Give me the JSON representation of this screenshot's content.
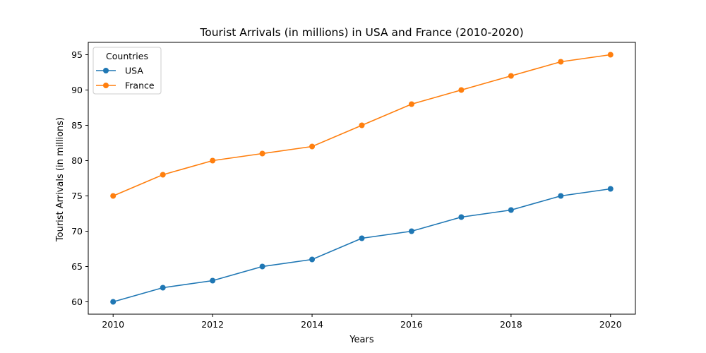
{
  "chart_data": {
    "type": "line",
    "title": "Tourist Arrivals (in millions) in USA and France (2010-2020)",
    "xlabel": "Years",
    "ylabel": "Tourist Arrivals (in millions)",
    "x": [
      2010,
      2011,
      2012,
      2013,
      2014,
      2015,
      2016,
      2017,
      2018,
      2019,
      2020
    ],
    "xlim": [
      2009.5,
      2020.5
    ],
    "ylim": [
      58.25,
      96.75
    ],
    "x_ticks": [
      "2010",
      "2012",
      "2014",
      "2016",
      "2018",
      "2020"
    ],
    "y_ticks": [
      "60",
      "65",
      "70",
      "75",
      "80",
      "85",
      "90",
      "95"
    ],
    "grid": false,
    "legend": {
      "title": "Countries",
      "placement": "top-left"
    },
    "series": [
      {
        "name": "USA",
        "color": "#1f77b4",
        "marker": "circle",
        "values": [
          60,
          62,
          63,
          65,
          66,
          69,
          70,
          72,
          73,
          75,
          76
        ]
      },
      {
        "name": "France",
        "color": "#ff7f0e",
        "marker": "circle",
        "values": [
          75,
          78,
          80,
          81,
          82,
          85,
          88,
          90,
          92,
          94,
          95
        ]
      }
    ]
  }
}
